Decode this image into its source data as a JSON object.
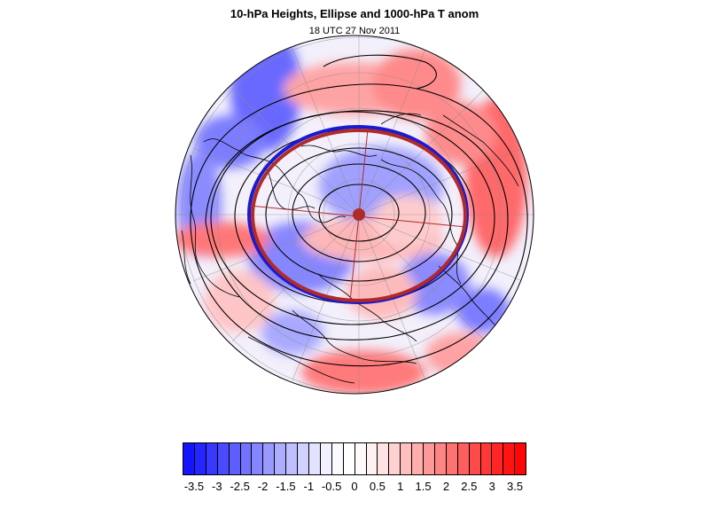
{
  "map": {
    "title": "10-hPa Heights, Ellipse and 1000-hPa T anom",
    "subtitle": "18 UTC 27 Nov 2011",
    "projection": "north-polar-orthographic",
    "field": "1000-hPa temperature anomaly (shaded)",
    "overlays": [
      "10-hPa height contours",
      "fitted vortex ellipse",
      "ellipse axes and centroid"
    ],
    "colors": {
      "negative": "#1414ff",
      "positive": "#ff1414",
      "ellipse_outer": "#1a1ad0",
      "ellipse_inner": "#b02a2a",
      "contour": "#000000"
    }
  },
  "colorbar": {
    "min": -3.75,
    "max": 3.75,
    "step": 0.25,
    "tick_labels": [
      "-3.5",
      "-3",
      "-2.5",
      "-2",
      "-1.5",
      "-1",
      "-0.5",
      "0",
      "0.5",
      "1",
      "1.5",
      "2",
      "2.5",
      "3",
      "3.5"
    ],
    "tick_values": [
      -3.5,
      -3,
      -2.5,
      -2,
      -1.5,
      -1,
      -0.5,
      0,
      0.5,
      1,
      1.5,
      2,
      2.5,
      3,
      3.5
    ],
    "colors": [
      "#1414ff",
      "#2525ff",
      "#3737ff",
      "#4a4aff",
      "#5e5eff",
      "#7272ff",
      "#8585ff",
      "#9999ff",
      "#adadff",
      "#bfbfff",
      "#d1d1ff",
      "#e3e3ff",
      "#f1f1ff",
      "#fafaff",
      "#ffffff",
      "#fffafa",
      "#fff1f1",
      "#ffe3e3",
      "#ffd1d1",
      "#ffbfbf",
      "#ffadad",
      "#ff9999",
      "#ff8585",
      "#ff7272",
      "#ff5e5e",
      "#ff4a4a",
      "#ff3737",
      "#ff2525",
      "#ff1414",
      "#ff0505"
    ]
  }
}
